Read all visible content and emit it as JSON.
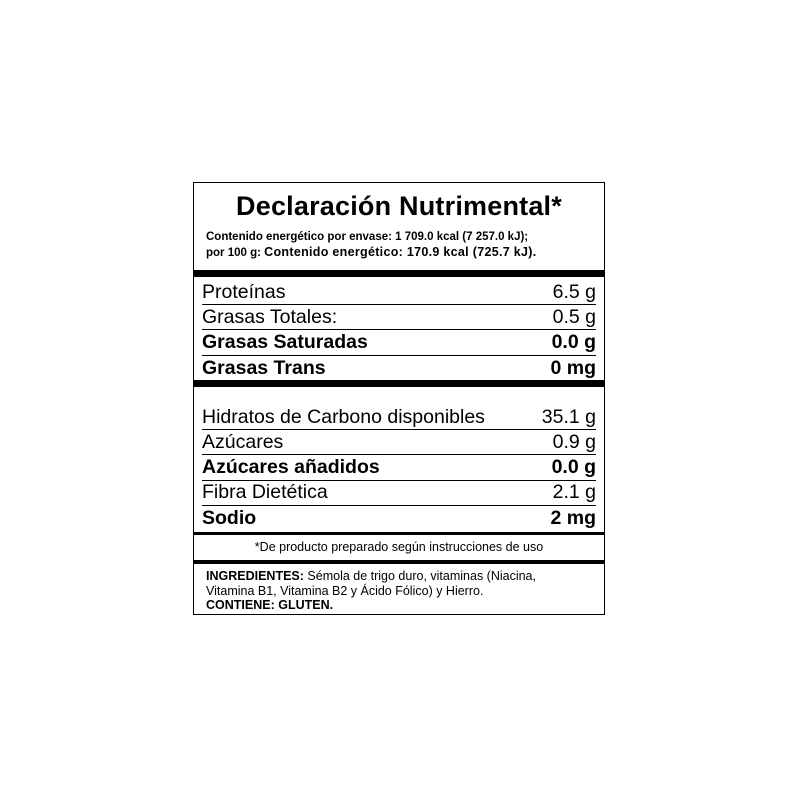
{
  "title": "Declaración Nutrimental*",
  "energy": {
    "line1": "Contenido energético por envase: 1 709.0 kcal (7 257.0 kJ);",
    "line2_prefix": "por 100 g: ",
    "line2_bold": "Contenido energético: 170.9 kcal (725.7 kJ)."
  },
  "nutrients_group1": [
    {
      "name": "Proteínas",
      "value": "6.5 g",
      "bold": false
    },
    {
      "name": "Grasas Totales:",
      "value": "0.5 g",
      "bold": false
    },
    {
      "name": "Grasas Saturadas",
      "value": "0.0 g",
      "bold": true
    },
    {
      "name": "Grasas Trans",
      "value": "0 mg",
      "bold": true
    }
  ],
  "nutrients_group2": [
    {
      "name": "Hidratos de Carbono disponibles",
      "value": "35.1 g",
      "bold": false
    },
    {
      "name": "Azúcares",
      "value": "0.9 g",
      "bold": false
    },
    {
      "name": "Azúcares añadidos",
      "value": "0.0 g",
      "bold": true
    },
    {
      "name": "Fibra Dietética",
      "value": "2.1 g",
      "bold": false
    },
    {
      "name": "Sodio",
      "value": "2 mg",
      "bold": true
    }
  ],
  "footnote": "*De producto preparado según instrucciones de uso",
  "ingredients": {
    "label": "INGREDIENTES:",
    "text1": " Sémola de trigo duro, vitaminas (Niacina,",
    "text2": "Vitamina B1, Vitamina B2 y Ácido Fólico) y Hierro.",
    "contains": "CONTIENE: GLUTEN."
  }
}
